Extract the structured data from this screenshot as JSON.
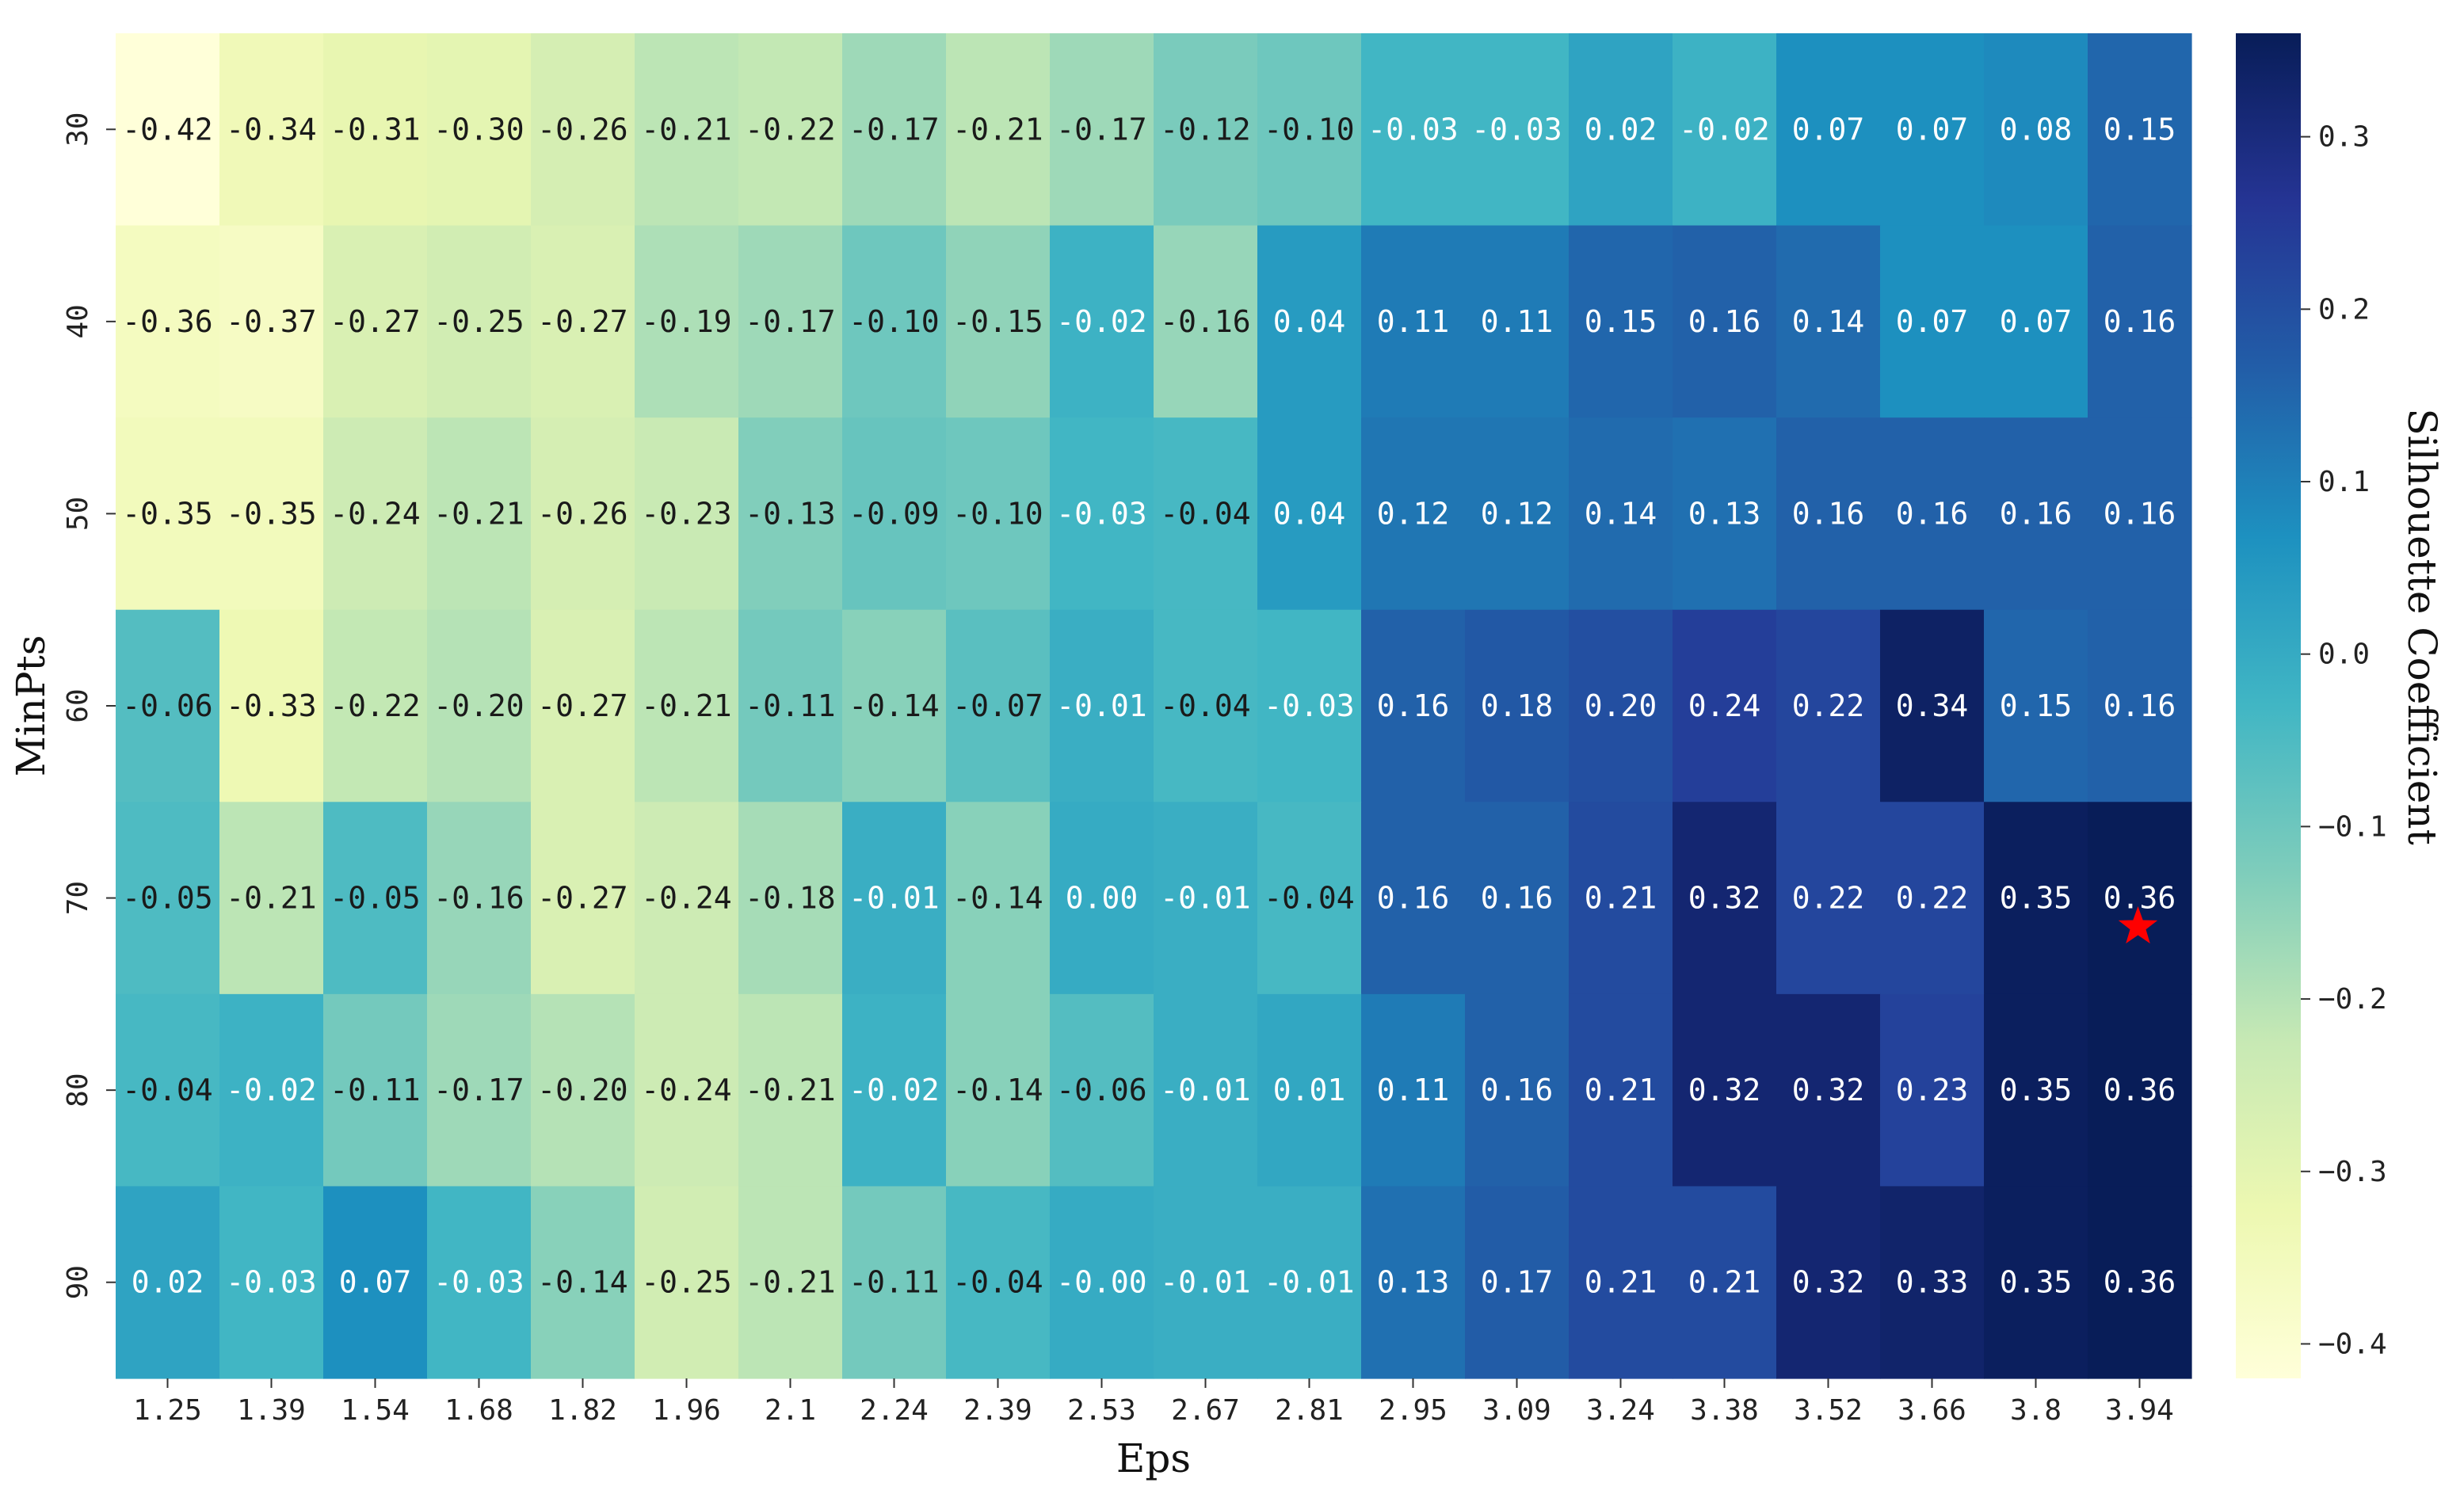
{
  "chart_data": {
    "type": "heatmap",
    "title": "",
    "xlabel": "Eps",
    "ylabel": "MinPts",
    "x": [
      "1.25",
      "1.39",
      "1.54",
      "1.68",
      "1.82",
      "1.96",
      "2.1",
      "2.24",
      "2.39",
      "2.53",
      "2.67",
      "2.81",
      "2.95",
      "3.09",
      "3.24",
      "3.38",
      "3.52",
      "3.66",
      "3.8",
      "3.94"
    ],
    "y": [
      "30",
      "40",
      "50",
      "60",
      "70",
      "80",
      "90"
    ],
    "values": [
      [
        -0.42,
        -0.34,
        -0.31,
        -0.3,
        -0.26,
        -0.21,
        -0.22,
        -0.17,
        -0.21,
        -0.17,
        -0.12,
        -0.1,
        -0.03,
        -0.03,
        0.02,
        -0.02,
        0.07,
        0.07,
        0.08,
        0.15
      ],
      [
        -0.36,
        -0.37,
        -0.27,
        -0.25,
        -0.27,
        -0.19,
        -0.17,
        -0.1,
        -0.15,
        -0.02,
        -0.16,
        0.04,
        0.11,
        0.11,
        0.15,
        0.16,
        0.14,
        0.07,
        0.07,
        0.16
      ],
      [
        -0.35,
        -0.35,
        -0.24,
        -0.21,
        -0.26,
        -0.23,
        -0.13,
        -0.09,
        -0.1,
        -0.03,
        -0.04,
        0.04,
        0.12,
        0.12,
        0.14,
        0.13,
        0.16,
        0.16,
        0.16,
        0.16
      ],
      [
        -0.06,
        -0.33,
        -0.22,
        -0.2,
        -0.27,
        -0.21,
        -0.11,
        -0.14,
        -0.07,
        -0.01,
        -0.04,
        -0.03,
        0.16,
        0.18,
        0.2,
        0.24,
        0.22,
        0.34,
        0.15,
        0.16
      ],
      [
        -0.05,
        -0.21,
        -0.05,
        -0.16,
        -0.27,
        -0.24,
        -0.18,
        -0.01,
        -0.14,
        0.0,
        -0.01,
        -0.04,
        0.16,
        0.16,
        0.21,
        0.32,
        0.22,
        0.22,
        0.35,
        0.36
      ],
      [
        -0.04,
        -0.02,
        -0.11,
        -0.17,
        -0.2,
        -0.24,
        -0.21,
        -0.02,
        -0.14,
        -0.06,
        -0.01,
        0.01,
        0.11,
        0.16,
        0.21,
        0.32,
        0.32,
        0.23,
        0.35,
        0.36
      ],
      [
        0.02,
        -0.03,
        0.07,
        -0.03,
        -0.14,
        -0.25,
        -0.21,
        -0.11,
        -0.04,
        -0.0,
        -0.01,
        -0.01,
        0.13,
        0.17,
        0.21,
        0.21,
        0.32,
        0.33,
        0.35,
        0.36
      ]
    ],
    "labels": [
      [
        "-0.42",
        "-0.34",
        "-0.31",
        "-0.30",
        "-0.26",
        "-0.21",
        "-0.22",
        "-0.17",
        "-0.21",
        "-0.17",
        "-0.12",
        "-0.10",
        "-0.03",
        "-0.03",
        "0.02",
        "-0.02",
        "0.07",
        "0.07",
        "0.08",
        "0.15"
      ],
      [
        "-0.36",
        "-0.37",
        "-0.27",
        "-0.25",
        "-0.27",
        "-0.19",
        "-0.17",
        "-0.10",
        "-0.15",
        "-0.02",
        "-0.16",
        "0.04",
        "0.11",
        "0.11",
        "0.15",
        "0.16",
        "0.14",
        "0.07",
        "0.07",
        "0.16"
      ],
      [
        "-0.35",
        "-0.35",
        "-0.24",
        "-0.21",
        "-0.26",
        "-0.23",
        "-0.13",
        "-0.09",
        "-0.10",
        "-0.03",
        "-0.04",
        "0.04",
        "0.12",
        "0.12",
        "0.14",
        "0.13",
        "0.16",
        "0.16",
        "0.16",
        "0.16"
      ],
      [
        "-0.06",
        "-0.33",
        "-0.22",
        "-0.20",
        "-0.27",
        "-0.21",
        "-0.11",
        "-0.14",
        "-0.07",
        "-0.01",
        "-0.04",
        "-0.03",
        "0.16",
        "0.18",
        "0.20",
        "0.24",
        "0.22",
        "0.34",
        "0.15",
        "0.16"
      ],
      [
        "-0.05",
        "-0.21",
        "-0.05",
        "-0.16",
        "-0.27",
        "-0.24",
        "-0.18",
        "-0.01",
        "-0.14",
        "0.00",
        "-0.01",
        "-0.04",
        "0.16",
        "0.16",
        "0.21",
        "0.32",
        "0.22",
        "0.22",
        "0.35",
        "0.36"
      ],
      [
        "-0.04",
        "-0.02",
        "-0.11",
        "-0.17",
        "-0.20",
        "-0.24",
        "-0.21",
        "-0.02",
        "-0.14",
        "-0.06",
        "-0.01",
        "0.01",
        "0.11",
        "0.16",
        "0.21",
        "0.32",
        "0.32",
        "0.23",
        "0.35",
        "0.36"
      ],
      [
        "0.02",
        "-0.03",
        "0.07",
        "-0.03",
        "-0.14",
        "-0.25",
        "-0.21",
        "-0.11",
        "-0.04",
        "-0.00",
        "-0.01",
        "-0.01",
        "0.13",
        "0.17",
        "0.21",
        "0.21",
        "0.32",
        "0.33",
        "0.35",
        "0.36"
      ]
    ],
    "colormap": "YlGnBu",
    "colormap_stops": [
      "#ffffd9",
      "#edf8b1",
      "#c7e9b4",
      "#7fcdbb",
      "#41b6c4",
      "#1d91c0",
      "#225ea8",
      "#253494",
      "#081d58"
    ],
    "colorbar": {
      "label": "Silhouette Coefficient",
      "range": [
        -0.42,
        0.36
      ],
      "ticks": [
        0.3,
        0.2,
        0.1,
        0.0,
        -0.1,
        -0.2,
        -0.3,
        -0.4
      ],
      "tick_labels": [
        "0.3",
        "0.2",
        "0.1",
        "0.0",
        "−0.1",
        "−0.2",
        "−0.3",
        "−0.4"
      ]
    },
    "marker": {
      "symbol": "star",
      "color": "#ff0000",
      "x": "3.94",
      "y": "70"
    },
    "text_color_light": "#ffffff",
    "text_color_dark": "#1a1a1a"
  }
}
